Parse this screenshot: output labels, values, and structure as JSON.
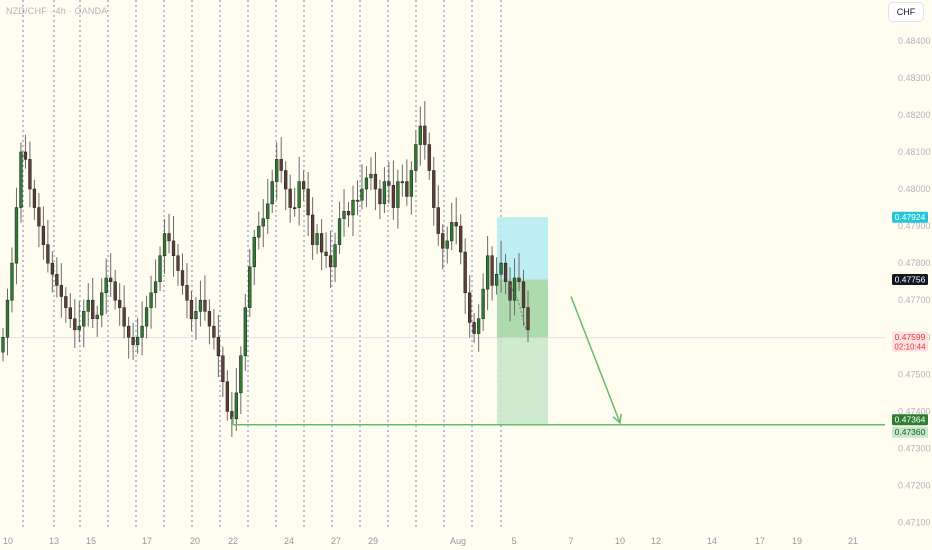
{
  "header": {
    "symbol": "NZD/CHF · 4h · OANDA",
    "currency": "CHF"
  },
  "colors": {
    "background": "#fefdf0",
    "up": "#2e7d32",
    "down": "#5d4037",
    "outline": "#1b1b1b",
    "wick": "#6b6b6b",
    "grid": "#3f51b5",
    "target_zone": "#b2ebf2",
    "profit_zone": "#a5d6a7",
    "stop_zone": "#c8e6c9",
    "arrow": "#66bb6a",
    "current_badge": "#fde2e4",
    "current_text": "#e53935"
  },
  "chart_data": {
    "type": "candlestick",
    "ylim": [
      0.4708,
      0.4851
    ],
    "y_ticks": [
      "0.48400",
      "0.48300",
      "0.48200",
      "0.48100",
      "0.48000",
      "0.47900",
      "0.47800",
      "0.47700",
      "0.47600",
      "0.47500",
      "0.47400",
      "0.47300",
      "0.47200",
      "0.47100"
    ],
    "x_ticks": [
      "10",
      "13",
      "15",
      "17",
      "20",
      "22",
      "24",
      "27",
      "29",
      "Aug",
      "5",
      "7",
      "10",
      "12",
      "14",
      "17",
      "19",
      "21"
    ],
    "price_labels": [
      {
        "value": "0.47924",
        "price": 0.47924,
        "bg": "#26c6da",
        "color": "#ffffff"
      },
      {
        "value": "0.47756",
        "price": 0.47756,
        "bg": "#131722",
        "color": "#ffffff"
      },
      {
        "value": "0.47599",
        "price": 0.47599,
        "bg": "#fde2e4",
        "color": "#e53935",
        "sub": "02:10:44"
      },
      {
        "value": "0.47364",
        "price": 0.47364,
        "bg": "#2e7d32",
        "color": "#ffffff"
      },
      {
        "value": "0.47360",
        "price": 0.4736,
        "bg": "#c8e6c9",
        "color": "#1b5e20"
      }
    ],
    "position": {
      "entry": 0.47756,
      "stop": 0.47924,
      "target": 0.47364,
      "current": 0.47599
    },
    "target_line": 0.47364,
    "closes": [
      0.476,
      0.477,
      0.478,
      0.4795,
      0.481,
      0.4808,
      0.48,
      0.4795,
      0.479,
      0.4785,
      0.478,
      0.4777,
      0.4774,
      0.4771,
      0.4768,
      0.4765,
      0.4762,
      0.4763,
      0.4767,
      0.477,
      0.4765,
      0.4766,
      0.4772,
      0.4776,
      0.4775,
      0.477,
      0.4768,
      0.4763,
      0.476,
      0.4758,
      0.476,
      0.4763,
      0.4768,
      0.4772,
      0.4775,
      0.4782,
      0.4788,
      0.4786,
      0.4782,
      0.4778,
      0.4774,
      0.477,
      0.4765,
      0.4767,
      0.477,
      0.4767,
      0.4763,
      0.476,
      0.4755,
      0.4748,
      0.474,
      0.4738,
      0.4745,
      0.4755,
      0.4768,
      0.4779,
      0.4787,
      0.479,
      0.4792,
      0.4796,
      0.4802,
      0.4808,
      0.4805,
      0.48,
      0.4795,
      0.4795,
      0.4802,
      0.48,
      0.4793,
      0.4785,
      0.4788,
      0.4783,
      0.4782,
      0.4779,
      0.4785,
      0.4792,
      0.4794,
      0.4793,
      0.4797,
      0.4797,
      0.48,
      0.4803,
      0.4804,
      0.48,
      0.4796,
      0.4802,
      0.4801,
      0.4795,
      0.4802,
      0.4802,
      0.4798,
      0.4805,
      0.4812,
      0.4817,
      0.4812,
      0.4805,
      0.4795,
      0.4788,
      0.4784,
      0.4786,
      0.4791,
      0.479,
      0.4783,
      0.4772,
      0.4764,
      0.4761,
      0.4765,
      0.4773,
      0.4782,
      0.4774,
      0.4777,
      0.478,
      0.4775,
      0.477,
      0.4776,
      0.4775,
      0.4768,
      0.4762
    ]
  }
}
